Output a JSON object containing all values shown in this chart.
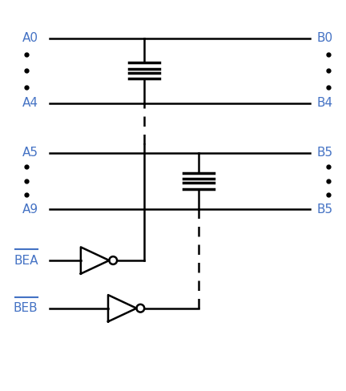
{
  "bg_color": "#ffffff",
  "line_color": "#000000",
  "label_color": "#4472c4",
  "figsize": [
    4.32,
    4.88
  ],
  "dpi": 100,
  "xlim": [
    0,
    10
  ],
  "ylim": [
    0,
    11
  ],
  "x_line_L": 1.4,
  "x_g1": 4.15,
  "x_g2": 5.75,
  "x_line_R": 9.0,
  "x_label_L": 1.05,
  "x_label_R": 9.2,
  "y_A0": 10.1,
  "y_A4": 8.2,
  "y_A5": 6.75,
  "y_A9": 5.1,
  "y_BEA": 3.6,
  "y_BEB": 2.2,
  "hw": 0.44,
  "sep": 0.13,
  "lw_main": 1.8,
  "lw_plate": 2.5,
  "buf_size": 0.52,
  "label_fs": 11
}
